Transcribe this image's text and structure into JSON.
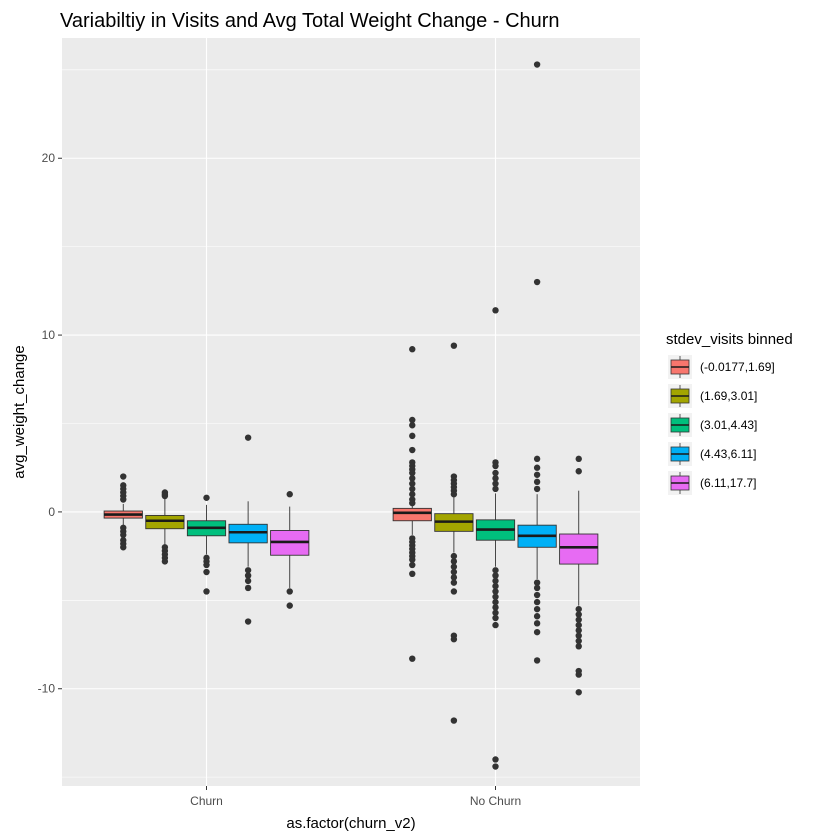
{
  "chart_data": {
    "type": "box",
    "title": "Variabiltiy in Visits and Avg Total Weight Change - Churn",
    "xlabel": "as.factor(churn_v2)",
    "ylabel": "avg_weight_change",
    "categories": [
      "Churn",
      "No Churn"
    ],
    "ylim": [
      -15.5,
      26.8
    ],
    "y_ticks": [
      -10,
      0,
      10,
      20
    ],
    "y_tick_labels": [
      "-10",
      "0",
      "10",
      "20"
    ],
    "grid": true,
    "legend": {
      "title": "stdev_visits binned",
      "position": "right"
    },
    "series": [
      {
        "name": "(-0.0177,1.69]",
        "color": "#F8766D",
        "boxes": [
          {
            "category": "Churn",
            "q1": -0.35,
            "median": -0.15,
            "q3": 0.05,
            "whisker_low": -0.8,
            "whisker_high": 0.45,
            "outliers": [
              2.0,
              1.5,
              1.3,
              1.1,
              0.9,
              0.7,
              -0.9,
              -1.1,
              -1.3,
              -1.6,
              -1.8,
              -2.0
            ]
          },
          {
            "category": "No Churn",
            "q1": -0.5,
            "median": -0.05,
            "q3": 0.2,
            "whisker_low": -1.3,
            "whisker_high": 0.45,
            "outliers": [
              9.2,
              5.2,
              4.9,
              4.3,
              3.5,
              2.8,
              2.6,
              2.4,
              2.2,
              1.9,
              1.6,
              1.3,
              1.0,
              0.7,
              0.5,
              -1.5,
              -1.7,
              -1.9,
              -2.1,
              -2.3,
              -2.5,
              -2.7,
              -3.0,
              -3.5,
              -8.3
            ]
          }
        ]
      },
      {
        "name": "(1.69,3.01]",
        "color": "#A3A500",
        "boxes": [
          {
            "category": "Churn",
            "q1": -0.95,
            "median": -0.5,
            "q3": -0.2,
            "whisker_low": -1.9,
            "whisker_high": 0.75,
            "outliers": [
              1.1,
              1.0,
              0.9,
              -2.0,
              -2.2,
              -2.4,
              -2.6,
              -2.8
            ]
          },
          {
            "category": "No Churn",
            "q1": -1.1,
            "median": -0.55,
            "q3": -0.1,
            "whisker_low": -2.3,
            "whisker_high": 0.9,
            "outliers": [
              9.4,
              2.0,
              1.8,
              1.6,
              1.4,
              1.2,
              1.0,
              -2.5,
              -2.8,
              -3.1,
              -3.4,
              -3.7,
              -4.0,
              -4.5,
              -7.0,
              -7.2,
              -11.8
            ]
          }
        ]
      },
      {
        "name": "(3.01,4.43]",
        "color": "#00BF7D",
        "boxes": [
          {
            "category": "Churn",
            "q1": -1.35,
            "median": -0.9,
            "q3": -0.5,
            "whisker_low": -2.4,
            "whisker_high": 0.4,
            "outliers": [
              0.8,
              -2.6,
              -2.8,
              -3.0,
              -3.4,
              -4.5
            ]
          },
          {
            "category": "No Churn",
            "q1": -1.6,
            "median": -1.0,
            "q3": -0.45,
            "whisker_low": -3.1,
            "whisker_high": 1.05,
            "outliers": [
              11.4,
              2.8,
              2.6,
              2.2,
              1.9,
              1.6,
              1.3,
              -3.3,
              -3.6,
              -3.9,
              -4.2,
              -4.5,
              -4.8,
              -5.1,
              -5.4,
              -5.7,
              -6.0,
              -6.4,
              -14.0,
              -14.4
            ]
          }
        ]
      },
      {
        "name": "(4.43,6.11]",
        "color": "#00B0F6",
        "boxes": [
          {
            "category": "Churn",
            "q1": -1.75,
            "median": -1.15,
            "q3": -0.7,
            "whisker_low": -3.1,
            "whisker_high": 0.6,
            "outliers": [
              4.2,
              -3.3,
              -3.6,
              -3.9,
              -4.3,
              -6.2
            ]
          },
          {
            "category": "No Churn",
            "q1": -2.0,
            "median": -1.35,
            "q3": -0.75,
            "whisker_low": -3.8,
            "whisker_high": 1.0,
            "outliers": [
              25.3,
              13.0,
              3.0,
              2.5,
              2.1,
              1.7,
              1.3,
              -4.0,
              -4.3,
              -4.7,
              -5.1,
              -5.5,
              -5.9,
              -6.3,
              -6.8,
              -8.4
            ]
          }
        ]
      },
      {
        "name": "(6.11,17.7]",
        "color": "#E76BF3",
        "boxes": [
          {
            "category": "Churn",
            "q1": -2.45,
            "median": -1.7,
            "q3": -1.05,
            "whisker_low": -4.3,
            "whisker_high": 0.3,
            "outliers": [
              1.0,
              -4.5,
              -5.3
            ]
          },
          {
            "category": "No Churn",
            "q1": -2.95,
            "median": -2.0,
            "q3": -1.25,
            "whisker_low": -5.3,
            "whisker_high": 1.2,
            "outliers": [
              3.0,
              2.3,
              -5.5,
              -5.8,
              -6.1,
              -6.4,
              -6.7,
              -7.0,
              -7.3,
              -7.6,
              -9.0,
              -9.2,
              -10.2
            ]
          }
        ]
      }
    ]
  }
}
